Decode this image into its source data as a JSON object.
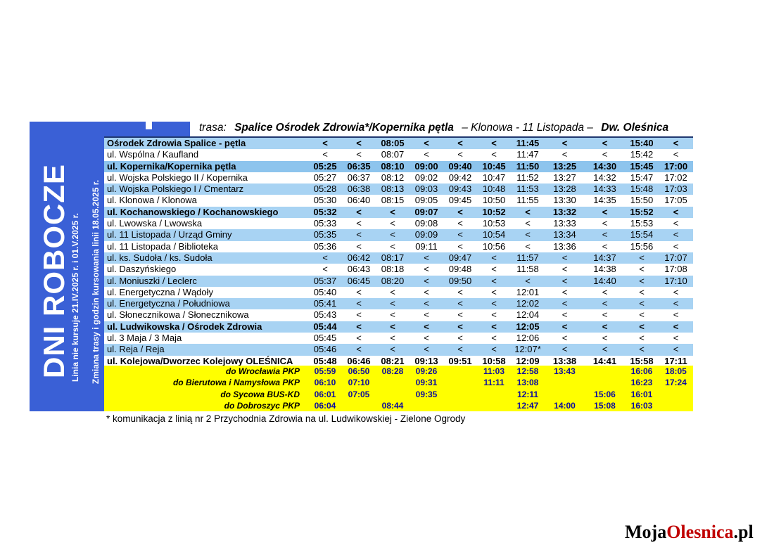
{
  "route_header": {
    "prefix": "trasa:",
    "route_main": "Spalice Ośrodek Zdrowia*/Kopernika pętla",
    "route_middle": "– Klonowa - 11 Listopada –",
    "route_end": "Dw. Oleśnica"
  },
  "sidebar": {
    "title": "DNI ROBOCZE",
    "note_1": "Linia nie kursuje 21.IV.2025 r. i 01.V.2025 r.",
    "note_2": "Zmiana trasy i godzin kursowania linii 18.05.2025 r."
  },
  "colors": {
    "sidebar_blue": "#3a60d6",
    "row_light_blue": "#a8d3f3",
    "row_medium_blue": "#8dc4ed",
    "connections_yellow": "#ffff00",
    "connection_time_navy": "#0b0b9e",
    "table_top_border": "#203870",
    "logo_red": "#c00000"
  },
  "timetable": {
    "skip_symbol": "<",
    "stops": [
      {
        "name": "Ośrodek Zdrowia Spalice - pętla",
        "bg": "blue",
        "bold": true,
        "times": [
          "<",
          "<",
          "08:05",
          "<",
          "<",
          "<",
          "11:45",
          "<",
          "<",
          "15:40",
          "<"
        ]
      },
      {
        "name": "ul. Wspólna / Kaufland",
        "bg": "white",
        "bold": false,
        "times": [
          "<",
          "<",
          "08:07",
          "<",
          "<",
          "<",
          "11:47",
          "<",
          "<",
          "15:42",
          "<"
        ]
      },
      {
        "name": "ul. Kopernika/Kopernika pętla",
        "bg": "kop",
        "bold": true,
        "times": [
          "05:25",
          "06:35",
          "08:10",
          "09:00",
          "09:40",
          "10:45",
          "11:50",
          "13:25",
          "14:30",
          "15:45",
          "17:00"
        ]
      },
      {
        "name": "ul. Wojska Polskiego II / Kopernika",
        "bg": "white",
        "bold": false,
        "times": [
          "05:27",
          "06:37",
          "08:12",
          "09:02",
          "09:42",
          "10:47",
          "11:52",
          "13:27",
          "14:32",
          "15:47",
          "17:02"
        ]
      },
      {
        "name": "ul. Wojska Polskiego I / Cmentarz",
        "bg": "blue",
        "bold": false,
        "times": [
          "05:28",
          "06:38",
          "08:13",
          "09:03",
          "09:43",
          "10:48",
          "11:53",
          "13:28",
          "14:33",
          "15:48",
          "17:03"
        ]
      },
      {
        "name": "ul. Klonowa / Klonowa",
        "bg": "white",
        "bold": false,
        "times": [
          "05:30",
          "06:40",
          "08:15",
          "09:05",
          "09:45",
          "10:50",
          "11:55",
          "13:30",
          "14:35",
          "15:50",
          "17:05"
        ]
      },
      {
        "name": "ul. Kochanowskiego / Kochanowskiego",
        "bg": "blue",
        "bold": true,
        "times": [
          "05:32",
          "<",
          "<",
          "09:07",
          "<",
          "10:52",
          "<",
          "13:32",
          "<",
          "15:52",
          "<"
        ]
      },
      {
        "name": "ul. Lwowska / Lwowska",
        "bg": "white",
        "bold": false,
        "times": [
          "05:33",
          "<",
          "<",
          "09:08",
          "<",
          "10:53",
          "<",
          "13:33",
          "<",
          "15:53",
          "<"
        ]
      },
      {
        "name": "ul. 11 Listopada / Urząd Gminy",
        "bg": "blue",
        "bold": false,
        "times": [
          "05:35",
          "<",
          "<",
          "09:09",
          "<",
          "10:54",
          "<",
          "13:34",
          "<",
          "15:54",
          "<"
        ]
      },
      {
        "name": "ul. 11 Listopada / Biblioteka",
        "bg": "white",
        "bold": false,
        "times": [
          "05:36",
          "<",
          "<",
          "09:11",
          "<",
          "10:56",
          "<",
          "13:36",
          "<",
          "15:56",
          "<"
        ]
      },
      {
        "name": "ul. ks. Sudoła / ks. Sudoła",
        "bg": "blue",
        "bold": false,
        "times": [
          "<",
          "06:42",
          "08:17",
          "<",
          "09:47",
          "<",
          "11:57",
          "<",
          "14:37",
          "<",
          "17:07"
        ]
      },
      {
        "name": "ul. Daszyńskiego",
        "bg": "white",
        "bold": false,
        "times": [
          "<",
          "06:43",
          "08:18",
          "<",
          "09:48",
          "<",
          "11:58",
          "<",
          "14:38",
          "<",
          "17:08"
        ]
      },
      {
        "name": "ul. Moniuszki / Leclerc",
        "bg": "blue",
        "bold": false,
        "times": [
          "05:37",
          "06:45",
          "08:20",
          "<",
          "09:50",
          "<",
          "<",
          "<",
          "14:40",
          "<",
          "17:10"
        ]
      },
      {
        "name": "ul. Energetyczna / Wądoły",
        "bg": "white",
        "bold": false,
        "times": [
          "05:40",
          "<",
          "<",
          "<",
          "<",
          "<",
          "12:01",
          "<",
          "<",
          "<",
          "<"
        ]
      },
      {
        "name": "ul. Energetyczna / Południowa",
        "bg": "blue",
        "bold": false,
        "times": [
          "05:41",
          "<",
          "<",
          "<",
          "<",
          "<",
          "12:02",
          "<",
          "<",
          "<",
          "<"
        ]
      },
      {
        "name": "ul. Słonecznikowa / Słonecznikowa",
        "bg": "white",
        "bold": false,
        "times": [
          "05:43",
          "<",
          "<",
          "<",
          "<",
          "<",
          "12:04",
          "<",
          "<",
          "<",
          "<"
        ]
      },
      {
        "name": "ul. Ludwikowska / Ośrodek Zdrowia",
        "bg": "blue",
        "bold": true,
        "times": [
          "05:44",
          "<",
          "<",
          "<",
          "<",
          "<",
          "12:05",
          "<",
          "<",
          "<",
          "<"
        ]
      },
      {
        "name": "ul. 3 Maja / 3 Maja",
        "bg": "white",
        "bold": false,
        "times": [
          "05:45",
          "<",
          "<",
          "<",
          "<",
          "<",
          "12:06",
          "<",
          "<",
          "<",
          "<"
        ]
      },
      {
        "name": "ul. Reja / Reja",
        "bg": "blue",
        "bold": false,
        "times": [
          "05:46",
          "<",
          "<",
          "<",
          "<",
          "<",
          "12:07*",
          "<",
          "<",
          "<",
          "<"
        ]
      },
      {
        "name": "ul. Kolejowa/Dworzec Kolejowy OLEŚNICA",
        "bg": "white",
        "bold": true,
        "times": [
          "05:48",
          "06:46",
          "08:21",
          "09:13",
          "09:51",
          "10:58",
          "12:09",
          "13:38",
          "14:41",
          "15:58",
          "17:11"
        ]
      }
    ]
  },
  "connections": {
    "rows": [
      {
        "label": "do Wrocławia PKP",
        "times": [
          "05:59",
          "06:50",
          "08:28",
          "09:26",
          "",
          "11:03",
          "12:58",
          "13:43",
          "",
          "16:06",
          "18:05"
        ]
      },
      {
        "label": "do Bierutowa i Namysłowa PKP",
        "times": [
          "06:10",
          "07:10",
          "",
          "09:31",
          "",
          "11:11",
          "13:08",
          "",
          "",
          "16:23",
          "17:24"
        ]
      },
      {
        "label": "do Sycowa BUS-KD",
        "times": [
          "06:01",
          "07:05",
          "",
          "09:35",
          "",
          "",
          "12:11",
          "",
          "15:06",
          "16:01",
          ""
        ]
      },
      {
        "label": "do Dobroszyc PKP",
        "times": [
          "06:04",
          "",
          "08:44",
          "",
          "",
          "",
          "12:47",
          "14:00",
          "15:08",
          "16:03",
          ""
        ]
      }
    ]
  },
  "footnote": "* komunikacja z linią nr 2 Przychodnia Zdrowia na ul. Ludwikowskiej - Zielone Ogrody",
  "logo": {
    "part1": "Moja",
    "part2": "Olesnica",
    "part3": ".pl"
  }
}
